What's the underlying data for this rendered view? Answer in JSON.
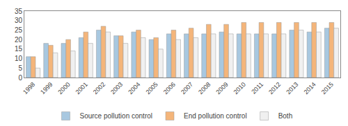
{
  "chart_data": {
    "type": "bar",
    "categories": [
      "1998",
      "1999",
      "2000",
      "2001",
      "2002",
      "2003",
      "2004",
      "2005",
      "2006",
      "2007",
      "2008",
      "2009",
      "2010",
      "2011",
      "2012",
      "2013",
      "2014",
      "2015"
    ],
    "series": [
      {
        "name": "Source pollution control",
        "color": "#A8C8E0",
        "values": [
          11,
          18,
          18,
          21,
          25,
          22,
          24,
          20,
          23,
          23,
          23,
          24,
          23,
          23,
          23,
          25,
          24,
          26
        ]
      },
      {
        "name": "End pollution control",
        "color": "#F4B57A",
        "values": [
          11,
          17,
          20,
          24,
          27,
          22,
          25,
          21,
          25,
          26,
          28,
          28,
          29,
          29,
          29,
          29,
          29,
          29
        ]
      },
      {
        "name": "Both",
        "color": "#F0F0F0",
        "values": [
          5,
          13,
          14,
          18,
          24,
          18,
          21,
          15,
          20,
          21,
          23,
          23,
          23,
          23,
          23,
          25,
          24,
          26
        ]
      }
    ],
    "ylim": [
      0,
      35
    ],
    "yticks": [
      0,
      5,
      10,
      15,
      20,
      25,
      30,
      35
    ],
    "grid": false,
    "legend": "bottom"
  }
}
